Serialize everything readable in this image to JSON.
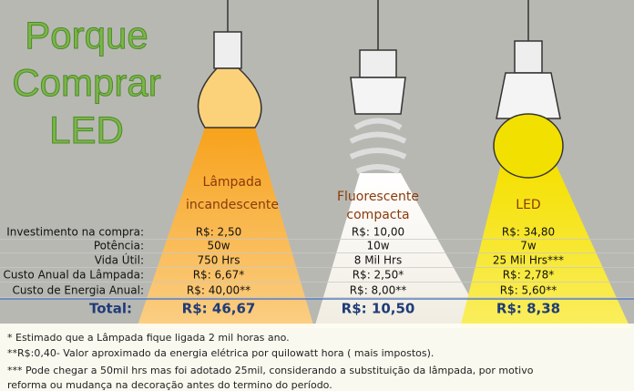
{
  "title": [
    "Porque",
    "Comprar",
    "LED"
  ],
  "lamps": [
    [
      "Lâmpada",
      "incandescente"
    ],
    [
      "Fluorescente",
      "compacta"
    ],
    [
      "LED"
    ]
  ],
  "table": {
    "rows": [
      [
        "Investimento na compra:",
        "R$: 2,50",
        "R$: 10,00",
        "R$: 34,80"
      ],
      [
        "Potência:",
        "50w",
        "10w",
        "7w"
      ],
      [
        "Vida Útil:",
        "750 Hrs",
        "8 Mil Hrs",
        "25 Mil Hrs***"
      ],
      [
        "Custo Anual da Lâmpada:",
        "R$: 6,67*",
        "R$: 2,50*",
        "R$: 2,78*"
      ],
      [
        "Custo de Energia Anual:",
        "R$: 40,00**",
        "R$: 8,00**",
        "R$: 5,60**"
      ],
      [
        "Total:",
        "R$: 46,67",
        "R$: 10,50",
        "R$: 8,38"
      ]
    ]
  },
  "notes": [
    "* Estimado que a Lâmpada fique ligada 2 mil horas ano.",
    "**R$:0,40- Valor aproximado da energia elétrica por quilowatt hora ( mais impostos).",
    "*** Pode chegar a 50mil hrs mas foi adotado 25mil, considerando a substituição da lâmpada, por motivo",
    "reforma ou mudança na decoração antes do termino do período."
  ]
}
